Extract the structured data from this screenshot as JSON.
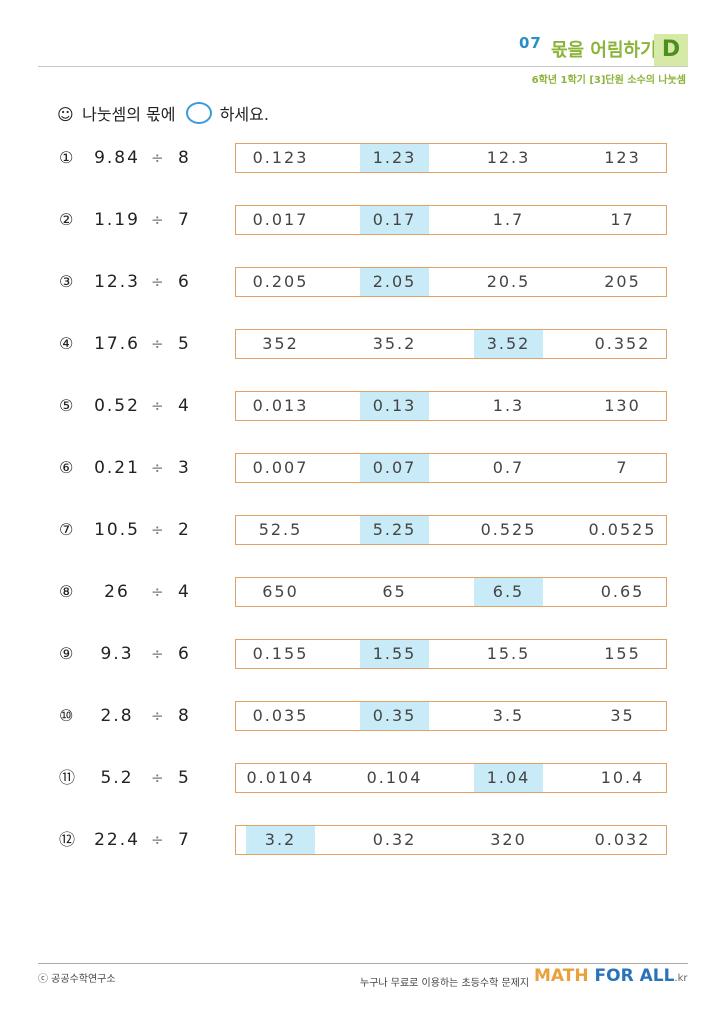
{
  "header": {
    "number": "07",
    "title": "몫을 어림하기",
    "level": "D",
    "subtitle": "6학년 1학기 [3]단원 소수의 나눗셈"
  },
  "instruction": {
    "icon": "smiley-icon",
    "before": "나눗셈의 몫에",
    "after": "하세요."
  },
  "problems": [
    {
      "num": "①",
      "dividend": "9.84",
      "op": "÷",
      "divisor": "8",
      "choices": [
        "0.123",
        "1.23",
        "12.3",
        "123"
      ],
      "highlight": 1
    },
    {
      "num": "②",
      "dividend": "1.19",
      "op": "÷",
      "divisor": "7",
      "choices": [
        "0.017",
        "0.17",
        "1.7",
        "17"
      ],
      "highlight": 1
    },
    {
      "num": "③",
      "dividend": "12.3",
      "op": "÷",
      "divisor": "6",
      "choices": [
        "0.205",
        "2.05",
        "20.5",
        "205"
      ],
      "highlight": 1
    },
    {
      "num": "④",
      "dividend": "17.6",
      "op": "÷",
      "divisor": "5",
      "choices": [
        "352",
        "35.2",
        "3.52",
        "0.352"
      ],
      "highlight": 2
    },
    {
      "num": "⑤",
      "dividend": "0.52",
      "op": "÷",
      "divisor": "4",
      "choices": [
        "0.013",
        "0.13",
        "1.3",
        "130"
      ],
      "highlight": 1
    },
    {
      "num": "⑥",
      "dividend": "0.21",
      "op": "÷",
      "divisor": "3",
      "choices": [
        "0.007",
        "0.07",
        "0.7",
        "7"
      ],
      "highlight": 1
    },
    {
      "num": "⑦",
      "dividend": "10.5",
      "op": "÷",
      "divisor": "2",
      "choices": [
        "52.5",
        "5.25",
        "0.525",
        "0.0525"
      ],
      "highlight": 1
    },
    {
      "num": "⑧",
      "dividend": "26",
      "op": "÷",
      "divisor": "4",
      "choices": [
        "650",
        "65",
        "6.5",
        "0.65"
      ],
      "highlight": 2
    },
    {
      "num": "⑨",
      "dividend": "9.3",
      "op": "÷",
      "divisor": "6",
      "choices": [
        "0.155",
        "1.55",
        "15.5",
        "155"
      ],
      "highlight": 1
    },
    {
      "num": "⑩",
      "dividend": "2.8",
      "op": "÷",
      "divisor": "8",
      "choices": [
        "0.035",
        "0.35",
        "3.5",
        "35"
      ],
      "highlight": 1
    },
    {
      "num": "⑪",
      "dividend": "5.2",
      "op": "÷",
      "divisor": "5",
      "choices": [
        "0.0104",
        "0.104",
        "1.04",
        "10.4"
      ],
      "highlight": 2
    },
    {
      "num": "⑫",
      "dividend": "22.4",
      "op": "÷",
      "divisor": "7",
      "choices": [
        "3.2",
        "0.32",
        "320",
        "0.032"
      ],
      "highlight": 0
    }
  ],
  "footer": {
    "copyright": "ⓒ 공공수학연구소",
    "tagline": "누구나 무료로 이용하는 초등수학 문제지",
    "logo_math": "MATH",
    "logo_for_all": "FOR ALL",
    "logo_kr": ".kr"
  },
  "colors": {
    "accent_blue": "#2a8fc4",
    "accent_green": "#8cb33a",
    "highlight": "#c9eaf7",
    "box_border": "#e0a266"
  }
}
